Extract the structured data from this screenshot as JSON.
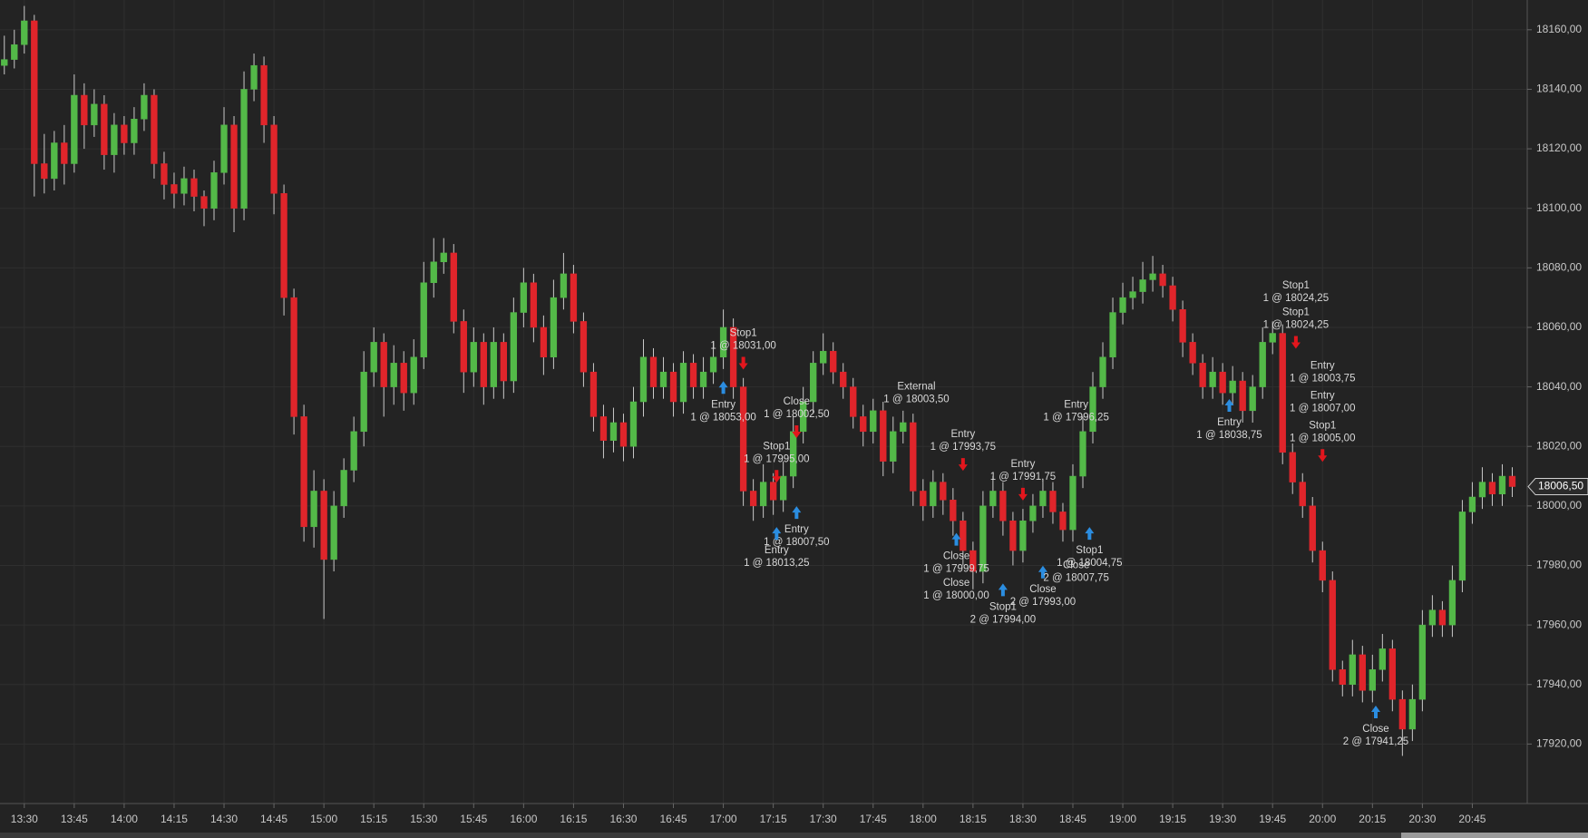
{
  "chart_data": {
    "type": "candlestick",
    "x": [
      804,
      807,
      810,
      813,
      816,
      819,
      822,
      825,
      828,
      831,
      834,
      837,
      840,
      843,
      846,
      849,
      852,
      855,
      858,
      861,
      864,
      867,
      870,
      873,
      876,
      879,
      882,
      885,
      888,
      891,
      894,
      897,
      900,
      903,
      906,
      909,
      912,
      915,
      918,
      921,
      924,
      927,
      930,
      933,
      936,
      939,
      942,
      945,
      948,
      951,
      954,
      957,
      960,
      963,
      966,
      969,
      972,
      975,
      978,
      981,
      984,
      987,
      990,
      993,
      996,
      999,
      1002,
      1005,
      1008,
      1011,
      1014,
      1017,
      1020,
      1023,
      1026,
      1029,
      1032,
      1035,
      1038,
      1041,
      1044,
      1047,
      1050,
      1053,
      1056,
      1059,
      1062,
      1065,
      1068,
      1071,
      1074,
      1077,
      1080,
      1083,
      1086,
      1089,
      1092,
      1095,
      1098,
      1101,
      1104,
      1107,
      1110,
      1113,
      1116,
      1119,
      1122,
      1125,
      1128,
      1131,
      1134,
      1137,
      1140,
      1143,
      1146,
      1149,
      1152,
      1155,
      1158,
      1161,
      1164,
      1167,
      1170,
      1173,
      1176,
      1179,
      1182,
      1185,
      1188,
      1191,
      1194,
      1197,
      1200,
      1203,
      1206,
      1209,
      1212,
      1215,
      1218,
      1221,
      1224,
      1227,
      1230,
      1233,
      1236,
      1239,
      1242,
      1245,
      1248,
      1251,
      1254,
      1257
    ],
    "ohlc": [
      [
        18148,
        18158,
        18145,
        18150
      ],
      [
        18150,
        18160,
        18147,
        18155
      ],
      [
        18155,
        18168,
        18152,
        18163
      ],
      [
        18163,
        18165,
        18104,
        18115
      ],
      [
        18115,
        18125,
        18105,
        18110
      ],
      [
        18110,
        18126,
        18106,
        18122
      ],
      [
        18122,
        18128,
        18108,
        18115
      ],
      [
        18115,
        18145,
        18112,
        18138
      ],
      [
        18138,
        18142,
        18120,
        18128
      ],
      [
        18128,
        18140,
        18124,
        18135
      ],
      [
        18135,
        18138,
        18113,
        18118
      ],
      [
        18118,
        18132,
        18112,
        18128
      ],
      [
        18128,
        18131,
        18118,
        18122
      ],
      [
        18122,
        18134,
        18118,
        18130
      ],
      [
        18130,
        18142,
        18126,
        18138
      ],
      [
        18138,
        18140,
        18110,
        18115
      ],
      [
        18115,
        18119,
        18103,
        18108
      ],
      [
        18108,
        18112,
        18100,
        18105
      ],
      [
        18105,
        18114,
        18101,
        18110
      ],
      [
        18110,
        18113,
        18099,
        18104
      ],
      [
        18104,
        18106,
        18094,
        18100
      ],
      [
        18100,
        18116,
        18096,
        18112
      ],
      [
        18112,
        18134,
        18108,
        18128
      ],
      [
        18128,
        18131,
        18092,
        18100
      ],
      [
        18100,
        18146,
        18096,
        18140
      ],
      [
        18140,
        18152,
        18136,
        18148
      ],
      [
        18148,
        18151,
        18122,
        18128
      ],
      [
        18128,
        18131,
        18098,
        18105
      ],
      [
        18105,
        18108,
        18064,
        18070
      ],
      [
        18070,
        18073,
        18024,
        18030
      ],
      [
        18030,
        18034,
        17988,
        17993
      ],
      [
        17993,
        18012,
        17986,
        18005
      ],
      [
        18005,
        18009,
        17962,
        17982
      ],
      [
        17982,
        18005,
        17978,
        18000
      ],
      [
        18000,
        18016,
        17996,
        18012
      ],
      [
        18012,
        18030,
        18008,
        18025
      ],
      [
        18025,
        18052,
        18020,
        18045
      ],
      [
        18045,
        18060,
        18040,
        18055
      ],
      [
        18055,
        18058,
        18030,
        18040
      ],
      [
        18040,
        18054,
        18034,
        18048
      ],
      [
        18048,
        18052,
        18032,
        18038
      ],
      [
        18038,
        18056,
        18034,
        18050
      ],
      [
        18050,
        18082,
        18046,
        18075
      ],
      [
        18075,
        18090,
        18070,
        18082
      ],
      [
        18082,
        18090,
        18078,
        18085
      ],
      [
        18085,
        18088,
        18058,
        18062
      ],
      [
        18062,
        18066,
        18038,
        18045
      ],
      [
        18045,
        18060,
        18040,
        18055
      ],
      [
        18055,
        18058,
        18034,
        18040
      ],
      [
        18040,
        18060,
        18036,
        18055
      ],
      [
        18055,
        18058,
        18036,
        18042
      ],
      [
        18042,
        18070,
        18038,
        18065
      ],
      [
        18065,
        18080,
        18060,
        18075
      ],
      [
        18075,
        18078,
        18055,
        18060
      ],
      [
        18060,
        18064,
        18044,
        18050
      ],
      [
        18050,
        18076,
        18046,
        18070
      ],
      [
        18070,
        18085,
        18066,
        18078
      ],
      [
        18078,
        18081,
        18058,
        18062
      ],
      [
        18062,
        18065,
        18040,
        18045
      ],
      [
        18045,
        18048,
        18025,
        18030
      ],
      [
        18030,
        18034,
        18016,
        18022
      ],
      [
        18022,
        18033,
        18018,
        18028
      ],
      [
        18028,
        18031,
        18015,
        18020
      ],
      [
        18020,
        18040,
        18016,
        18035
      ],
      [
        18035,
        18056,
        18030,
        18050
      ],
      [
        18050,
        18053,
        18036,
        18040
      ],
      [
        18040,
        18050,
        18036,
        18045
      ],
      [
        18045,
        18048,
        18030,
        18035
      ],
      [
        18035,
        18052,
        18031,
        18048
      ],
      [
        18048,
        18051,
        18036,
        18040
      ],
      [
        18040,
        18050,
        18036,
        18045
      ],
      [
        18045,
        18055,
        18041,
        18050
      ],
      [
        18050,
        18066,
        18046,
        18060
      ],
      [
        18060,
        18063,
        18036,
        18040
      ],
      [
        18040,
        18043,
        18000,
        18005
      ],
      [
        18005,
        18009,
        17995,
        18000
      ],
      [
        18000,
        18014,
        17996,
        18008
      ],
      [
        18008,
        18011,
        17997,
        18002
      ],
      [
        18002,
        18015,
        17998,
        18010
      ],
      [
        18010,
        18030,
        18006,
        18025
      ],
      [
        18025,
        18040,
        18021,
        18035
      ],
      [
        18035,
        18052,
        18031,
        18048
      ],
      [
        18048,
        18058,
        18044,
        18052
      ],
      [
        18052,
        18055,
        18041,
        18045
      ],
      [
        18045,
        18048,
        18036,
        18040
      ],
      [
        18040,
        18043,
        18026,
        18030
      ],
      [
        18030,
        18034,
        18020,
        18025
      ],
      [
        18025,
        18036,
        18021,
        18032
      ],
      [
        18032,
        18035,
        18010,
        18015
      ],
      [
        18015,
        18030,
        18011,
        18025
      ],
      [
        18025,
        18032,
        18021,
        18028
      ],
      [
        18028,
        18031,
        18000,
        18005
      ],
      [
        18005,
        18009,
        17995,
        18000
      ],
      [
        18000,
        18012,
        17996,
        18008
      ],
      [
        18008,
        18011,
        17997,
        18002
      ],
      [
        18002,
        18006,
        17990,
        17995
      ],
      [
        17995,
        17998,
        17980,
        17985
      ],
      [
        17985,
        17988,
        17972,
        17978
      ],
      [
        17978,
        18005,
        17974,
        18000
      ],
      [
        18000,
        18010,
        17996,
        18005
      ],
      [
        18005,
        18008,
        17990,
        17995
      ],
      [
        17995,
        17998,
        17980,
        17985
      ],
      [
        17985,
        17999,
        17981,
        17995
      ],
      [
        17995,
        18004,
        17991,
        18000
      ],
      [
        18000,
        18009,
        17996,
        18005
      ],
      [
        18005,
        18008,
        17994,
        17998
      ],
      [
        17998,
        18001,
        17988,
        17992
      ],
      [
        17992,
        18014,
        17988,
        18010
      ],
      [
        18010,
        18030,
        18006,
        18025
      ],
      [
        18025,
        18045,
        18021,
        18040
      ],
      [
        18040,
        18055,
        18036,
        18050
      ],
      [
        18050,
        18070,
        18046,
        18065
      ],
      [
        18065,
        18075,
        18061,
        18070
      ],
      [
        18070,
        18077,
        18066,
        18072
      ],
      [
        18072,
        18082,
        18068,
        18076
      ],
      [
        18076,
        18084,
        18072,
        18078
      ],
      [
        18078,
        18081,
        18070,
        18074
      ],
      [
        18074,
        18077,
        18062,
        18066
      ],
      [
        18066,
        18069,
        18050,
        18055
      ],
      [
        18055,
        18058,
        18044,
        18048
      ],
      [
        18048,
        18051,
        18036,
        18040
      ],
      [
        18040,
        18050,
        18036,
        18045
      ],
      [
        18045,
        18048,
        18034,
        18038
      ],
      [
        18038,
        18047,
        18034,
        18042
      ],
      [
        18042,
        18045,
        18028,
        18032
      ],
      [
        18032,
        18044,
        18028,
        18040
      ],
      [
        18040,
        18060,
        18036,
        18055
      ],
      [
        18055,
        18062,
        18051,
        18058
      ],
      [
        18058,
        18061,
        18014,
        18018
      ],
      [
        18018,
        18021,
        18004,
        18008
      ],
      [
        18008,
        18011,
        17996,
        18000
      ],
      [
        18000,
        18003,
        17981,
        17985
      ],
      [
        17985,
        17988,
        17971,
        17975
      ],
      [
        17975,
        17978,
        17941,
        17945
      ],
      [
        17945,
        17948,
        17936,
        17940
      ],
      [
        17940,
        17955,
        17936,
        17950
      ],
      [
        17950,
        17953,
        17934,
        17938
      ],
      [
        17938,
        17950,
        17934,
        17945
      ],
      [
        17945,
        17957,
        17941,
        17952
      ],
      [
        17952,
        17955,
        17931,
        17935
      ],
      [
        17935,
        17938,
        17916,
        17925
      ],
      [
        17925,
        17940,
        17921,
        17935
      ],
      [
        17935,
        17965,
        17931,
        17960
      ],
      [
        17960,
        17970,
        17956,
        17965
      ],
      [
        17965,
        17968,
        17956,
        17960
      ],
      [
        17960,
        17980,
        17956,
        17975
      ],
      [
        17975,
        18002,
        17971,
        17998
      ],
      [
        17998,
        18008,
        17994,
        18003
      ],
      [
        18003,
        18013,
        17999,
        18008
      ],
      [
        18008,
        18011,
        18000,
        18004
      ],
      [
        18004,
        18014,
        18000,
        18010
      ],
      [
        18010,
        18013,
        18003,
        18006.5
      ]
    ],
    "up_color": "#53b948",
    "down_color": "#e0252b",
    "wick_color": "#c9c9c9",
    "arrow_colors": {
      "up": "#2b8de0",
      "down": "#e3161d"
    },
    "xlim": [
      802.7,
      1261.5
    ],
    "ylim": [
      17900,
      18170
    ],
    "grid": true,
    "xticks": [
      {
        "value": 810,
        "label": "13:30"
      },
      {
        "value": 825,
        "label": "13:45"
      },
      {
        "value": 840,
        "label": "14:00"
      },
      {
        "value": 855,
        "label": "14:15"
      },
      {
        "value": 870,
        "label": "14:30"
      },
      {
        "value": 885,
        "label": "14:45"
      },
      {
        "value": 900,
        "label": "15:00"
      },
      {
        "value": 915,
        "label": "15:15"
      },
      {
        "value": 930,
        "label": "15:30"
      },
      {
        "value": 945,
        "label": "15:45"
      },
      {
        "value": 960,
        "label": "16:00"
      },
      {
        "value": 975,
        "label": "16:15"
      },
      {
        "value": 990,
        "label": "16:30"
      },
      {
        "value": 1005,
        "label": "16:45"
      },
      {
        "value": 1020,
        "label": "17:00"
      },
      {
        "value": 1035,
        "label": "17:15"
      },
      {
        "value": 1050,
        "label": "17:30"
      },
      {
        "value": 1065,
        "label": "17:45"
      },
      {
        "value": 1080,
        "label": "18:00"
      },
      {
        "value": 1095,
        "label": "18:15"
      },
      {
        "value": 1110,
        "label": "18:30"
      },
      {
        "value": 1125,
        "label": "18:45"
      },
      {
        "value": 1140,
        "label": "19:00"
      },
      {
        "value": 1155,
        "label": "19:15"
      },
      {
        "value": 1170,
        "label": "19:30"
      },
      {
        "value": 1185,
        "label": "19:45"
      },
      {
        "value": 1200,
        "label": "20:00"
      },
      {
        "value": 1215,
        "label": "20:15"
      },
      {
        "value": 1230,
        "label": "20:30"
      },
      {
        "value": 1245,
        "label": "20:45"
      }
    ],
    "yticks": [
      {
        "value": 17920,
        "label": "17920,00"
      },
      {
        "value": 17940,
        "label": "17940,00"
      },
      {
        "value": 17960,
        "label": "17960,00"
      },
      {
        "value": 17980,
        "label": "17980,00"
      },
      {
        "value": 18000,
        "label": "18000,00"
      },
      {
        "value": 18020,
        "label": "18020,00"
      },
      {
        "value": 18040,
        "label": "18040,00"
      },
      {
        "value": 18060,
        "label": "18060,00"
      },
      {
        "value": 18080,
        "label": "18080,00"
      },
      {
        "value": 18100,
        "label": "18100,00"
      },
      {
        "value": 18120,
        "label": "18120,00"
      },
      {
        "value": 18140,
        "label": "18140,00"
      },
      {
        "value": 18160,
        "label": "18160,00"
      }
    ],
    "last_price": {
      "value": 18006.5,
      "label": "18006,50"
    },
    "annotations": [
      {
        "label": "Stop1",
        "detail": "1 @ 18031,00",
        "x": 1026,
        "y": 18058,
        "arrow": "down"
      },
      {
        "label": "Entry",
        "detail": "1 @ 18053,00",
        "x": 1020,
        "y": 18034,
        "arrow": "up"
      },
      {
        "label": "Close",
        "detail": "1 @ 18002,50",
        "x": 1042,
        "y": 18035,
        "arrow": "down"
      },
      {
        "label": "Stop1",
        "detail": "1 @ 17995,00",
        "x": 1036,
        "y": 18020,
        "arrow": "down"
      },
      {
        "label": "Entry",
        "detail": "1 @ 18007,50",
        "x": 1042,
        "y": 17992,
        "arrow": "up"
      },
      {
        "label": "Entry",
        "detail": "1 @ 18013,25",
        "x": 1036,
        "y": 17985,
        "arrow": "up"
      },
      {
        "label": "External",
        "detail": "1 @ 18003,50",
        "x": 1078,
        "y": 18040
      },
      {
        "label": "Entry",
        "detail": "1 @ 17993,75",
        "x": 1092,
        "y": 18024,
        "arrow": "down"
      },
      {
        "label": "Close",
        "detail": "1 @ 17999,75",
        "x": 1090,
        "y": 17983,
        "arrow": "up"
      },
      {
        "label": "Close",
        "detail": "1 @ 18000,00",
        "x": 1090,
        "y": 17974
      },
      {
        "label": "Stop1",
        "detail": "2 @ 17994,00",
        "x": 1104,
        "y": 17966,
        "arrow": "up"
      },
      {
        "label": "Close",
        "detail": "2 @ 17993,00",
        "x": 1116,
        "y": 17972,
        "arrow": "up"
      },
      {
        "label": "Entry",
        "detail": "1 @ 17996,25",
        "x": 1126,
        "y": 18034
      },
      {
        "label": "Stop1",
        "detail": "1 @ 18004,75",
        "x": 1130,
        "y": 17985,
        "arrow": "up"
      },
      {
        "label": "Close",
        "detail": "2 @ 18007,75",
        "x": 1126,
        "y": 17980
      },
      {
        "label": "Entry",
        "detail": "1 @ 17991,75",
        "x": 1110,
        "y": 18014,
        "arrow": "down"
      },
      {
        "label": "Stop1",
        "detail": "1 @ 18024,25",
        "x": 1192,
        "y": 18074
      },
      {
        "label": "Stop1",
        "detail": "1 @ 18024,25",
        "x": 1192,
        "y": 18065,
        "arrow": "down"
      },
      {
        "label": "Entry",
        "detail": "1 @ 18003,75",
        "x": 1200,
        "y": 18047
      },
      {
        "label": "Entry",
        "detail": "1 @ 18007,00",
        "x": 1200,
        "y": 18037
      },
      {
        "label": "Stop1",
        "detail": "1 @ 18005,00",
        "x": 1200,
        "y": 18027,
        "arrow": "down"
      },
      {
        "label": "Entry",
        "detail": "1 @ 18038,75",
        "x": 1172,
        "y": 18028,
        "arrow": "up"
      },
      {
        "label": "Close",
        "detail": "2 @ 17941,25",
        "x": 1216,
        "y": 17925,
        "arrow": "up"
      }
    ]
  }
}
